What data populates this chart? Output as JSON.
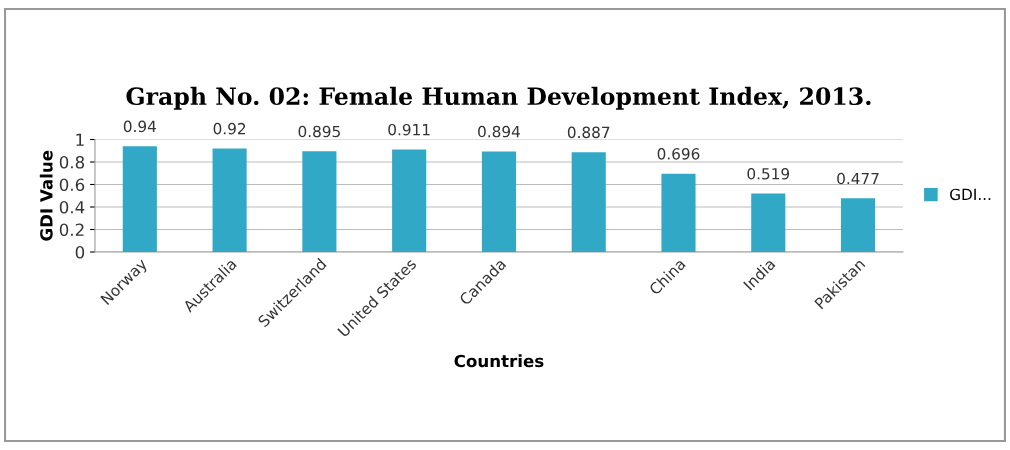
{
  "chart_data": {
    "type": "bar",
    "title": "Graph No. 02: Female Human Development Index, 2013.",
    "xlabel": "Countries",
    "ylabel": "GDI Value",
    "categories": [
      "Norway",
      "Australia",
      "Switzerland",
      "United States",
      "Canada",
      null,
      "China",
      "India",
      "Pakistan"
    ],
    "series": [
      {
        "name": "GDI...",
        "color": "#31a9c6",
        "values": [
          0.94,
          0.92,
          0.895,
          0.911,
          0.894,
          0.887,
          0.696,
          0.519,
          0.477
        ]
      }
    ],
    "ylim": [
      0,
      1
    ],
    "yticks": [
      0,
      0.2,
      0.4,
      0.6,
      0.8,
      1
    ],
    "grid": "y",
    "legend": "right",
    "data_labels": true
  }
}
